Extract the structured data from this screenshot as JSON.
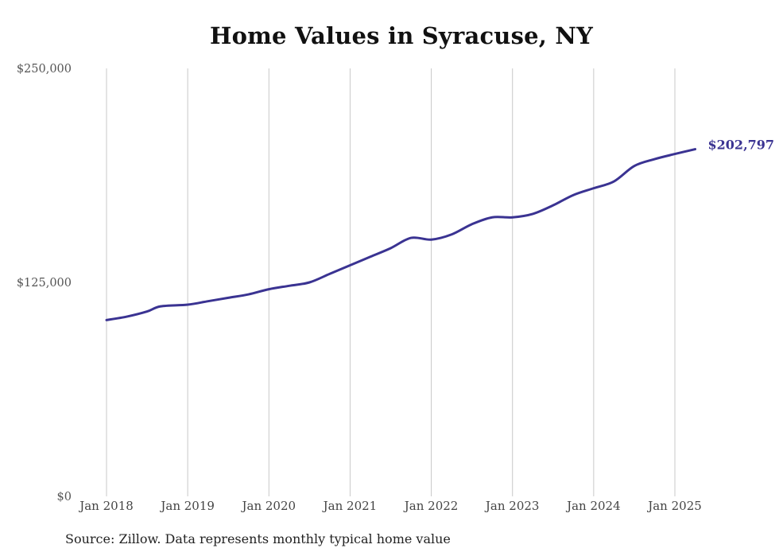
{
  "chart_data": {
    "type": "line",
    "title": "Home Values in Syracuse, NY",
    "source": "Source: Zillow. Data represents monthly typical home value",
    "xlabel": "",
    "ylabel": "",
    "ylim": [
      0,
      250000
    ],
    "yticks": [
      0,
      125000,
      250000
    ],
    "ytick_labels": [
      "$0",
      "$125,000",
      "$250,000"
    ],
    "xticks": [
      "2018-01",
      "2019-01",
      "2020-01",
      "2021-01",
      "2022-01",
      "2023-01",
      "2024-01",
      "2025-01"
    ],
    "xtick_labels": [
      "Jan 2018",
      "Jan 2019",
      "Jan 2020",
      "Jan 2021",
      "Jan 2022",
      "Jan 2023",
      "Jan 2024",
      "Jan 2025"
    ],
    "grid": "vertical",
    "line_color": "#3a3392",
    "end_label": "$202,797",
    "series": [
      {
        "x": [
          "2018-01",
          "2018-04",
          "2018-07",
          "2018-09",
          "2019-01",
          "2019-04",
          "2019-07",
          "2019-10",
          "2020-01",
          "2020-04",
          "2020-07",
          "2020-10",
          "2021-01",
          "2021-04",
          "2021-07",
          "2021-10",
          "2022-01",
          "2022-04",
          "2022-07",
          "2022-10",
          "2023-01",
          "2023-04",
          "2023-07",
          "2023-10",
          "2024-01",
          "2024-04",
          "2024-07",
          "2024-10",
          "2025-01",
          "2025-04"
        ],
        "y": [
          103000,
          105000,
          108000,
          111000,
          112000,
          114000,
          116000,
          118000,
          121000,
          123000,
          125000,
          130000,
          135000,
          140000,
          145000,
          151000,
          150000,
          153000,
          159000,
          163000,
          163000,
          165000,
          170000,
          176000,
          180000,
          184000,
          193000,
          197000,
          200000,
          202797
        ]
      }
    ]
  }
}
